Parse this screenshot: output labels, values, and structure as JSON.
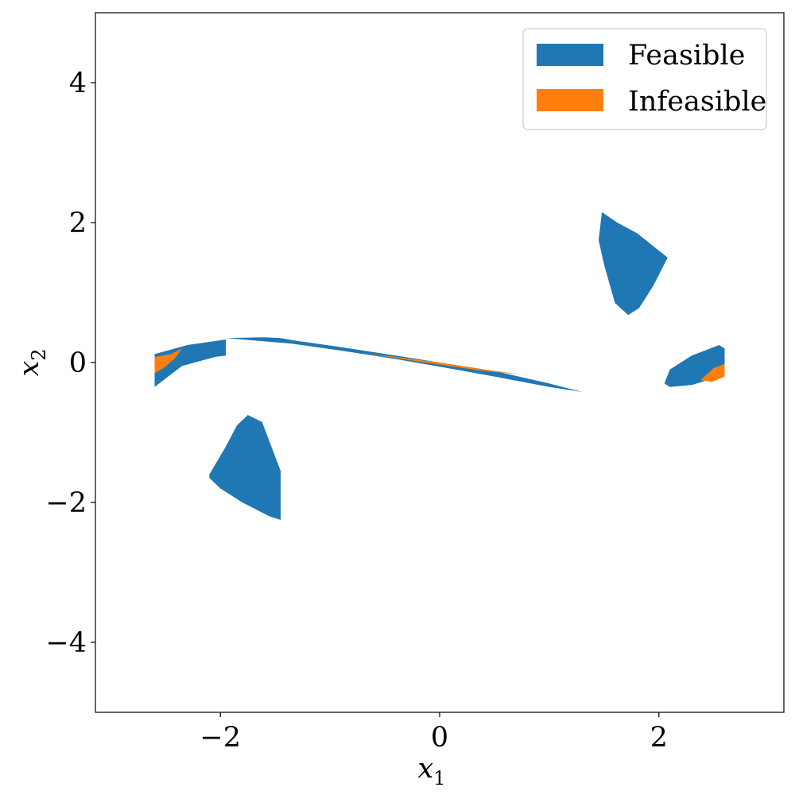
{
  "chart_data": {
    "type": "area",
    "title": "",
    "xlabel": "x",
    "xlabel_sub": "1",
    "ylabel": "x",
    "ylabel_sub": "2",
    "xlim": [
      -3.14,
      3.14
    ],
    "ylim": [
      -5,
      5
    ],
    "xticks": [
      -2,
      0,
      2
    ],
    "yticks": [
      -4,
      -2,
      0,
      2,
      4
    ],
    "xtick_labels": [
      "−2",
      "0",
      "2"
    ],
    "ytick_labels": [
      "−4",
      "−2",
      "0",
      "2",
      "4"
    ],
    "grid": false,
    "legend_position": "top-right",
    "series": [
      {
        "name": "Feasible",
        "color": "#1f77b4",
        "regions": [
          [
            [
              -2.6,
              0.12
            ],
            [
              -2.3,
              0.25
            ],
            [
              -1.95,
              0.33
            ],
            [
              -1.95,
              0.1
            ],
            [
              -2.05,
              0.08
            ],
            [
              -2.35,
              -0.05
            ],
            [
              -2.6,
              -0.35
            ]
          ],
          [
            [
              -1.95,
              0.35
            ],
            [
              -1.6,
              0.36
            ],
            [
              -1.45,
              0.35
            ],
            [
              -1.35,
              0.32
            ],
            [
              -0.9,
              0.22
            ],
            [
              -0.4,
              0.1
            ],
            [
              0.0,
              0.0
            ],
            [
              0.5,
              -0.12
            ],
            [
              1.0,
              -0.3
            ],
            [
              1.3,
              -0.42
            ],
            [
              1.0,
              -0.35
            ],
            [
              0.5,
              -0.2
            ],
            [
              0.0,
              -0.06
            ],
            [
              -0.4,
              0.05
            ],
            [
              -0.9,
              0.17
            ],
            [
              -1.35,
              0.27
            ]
          ],
          [
            [
              -2.1,
              -1.6
            ],
            [
              -1.95,
              -1.2
            ],
            [
              -1.85,
              -0.9
            ],
            [
              -1.75,
              -0.75
            ],
            [
              -1.62,
              -0.85
            ],
            [
              -1.45,
              -1.55
            ],
            [
              -1.45,
              -2.25
            ],
            [
              -1.55,
              -2.2
            ],
            [
              -1.8,
              -2.0
            ],
            [
              -2.0,
              -1.8
            ],
            [
              -2.1,
              -1.65
            ]
          ],
          [
            [
              1.48,
              2.15
            ],
            [
              1.62,
              2.0
            ],
            [
              1.8,
              1.85
            ],
            [
              2.0,
              1.6
            ],
            [
              2.08,
              1.5
            ],
            [
              1.95,
              1.1
            ],
            [
              1.82,
              0.78
            ],
            [
              1.72,
              0.68
            ],
            [
              1.6,
              0.85
            ],
            [
              1.5,
              1.4
            ],
            [
              1.45,
              1.75
            ]
          ],
          [
            [
              2.05,
              -0.3
            ],
            [
              2.1,
              -0.1
            ],
            [
              2.3,
              0.1
            ],
            [
              2.55,
              0.25
            ],
            [
              2.6,
              0.2
            ],
            [
              2.6,
              -0.1
            ],
            [
              2.45,
              -0.25
            ],
            [
              2.3,
              -0.32
            ],
            [
              2.1,
              -0.35
            ]
          ]
        ]
      },
      {
        "name": "Infeasible",
        "color": "#ff7f0e",
        "regions": [
          [
            [
              -2.6,
              0.08
            ],
            [
              -2.45,
              0.12
            ],
            [
              -2.35,
              0.2
            ],
            [
              -2.42,
              0.05
            ],
            [
              -2.52,
              -0.08
            ],
            [
              -2.6,
              -0.15
            ]
          ],
          [
            [
              -0.7,
              0.14
            ],
            [
              -0.3,
              0.06
            ],
            [
              0.0,
              0.0
            ],
            [
              0.4,
              -0.1
            ],
            [
              0.75,
              -0.17
            ],
            [
              0.4,
              -0.12
            ],
            [
              0.0,
              -0.03
            ],
            [
              -0.3,
              0.04
            ]
          ],
          [
            [
              2.38,
              -0.25
            ],
            [
              2.5,
              -0.08
            ],
            [
              2.6,
              -0.02
            ],
            [
              2.6,
              -0.2
            ],
            [
              2.48,
              -0.28
            ]
          ]
        ]
      }
    ]
  }
}
